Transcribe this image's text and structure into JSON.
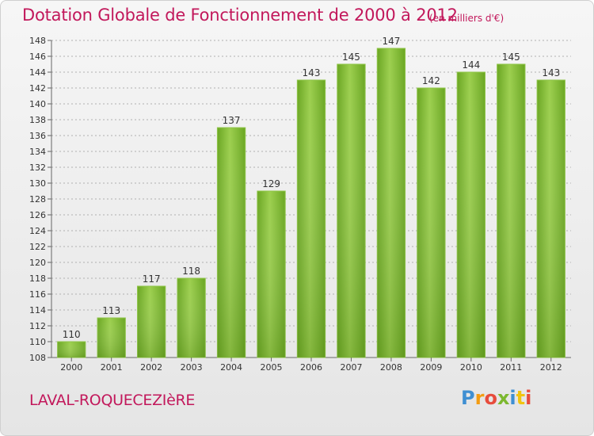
{
  "chart_data": {
    "type": "bar",
    "title": "Dotation Globale de Fonctionnement de 2000 à 2012",
    "subtitle": "(en milliers d'€)",
    "categories": [
      "2000",
      "2001",
      "2002",
      "2003",
      "2004",
      "2005",
      "2006",
      "2007",
      "2008",
      "2009",
      "2010",
      "2011",
      "2012"
    ],
    "values": [
      110,
      113,
      117,
      118,
      137,
      129,
      143,
      145,
      147,
      142,
      144,
      145,
      143
    ],
    "ylim": [
      108,
      148
    ],
    "yticks": [
      108,
      110,
      112,
      114,
      116,
      118,
      120,
      122,
      124,
      126,
      128,
      130,
      132,
      134,
      136,
      138,
      140,
      142,
      144,
      146,
      148
    ],
    "grid": true,
    "bar_color": "#7cb82f",
    "grid_color": "#b0b0b0"
  },
  "footer": {
    "commune": "LAVAL-ROQUECEZIèRE",
    "brand": "Proxiti"
  }
}
